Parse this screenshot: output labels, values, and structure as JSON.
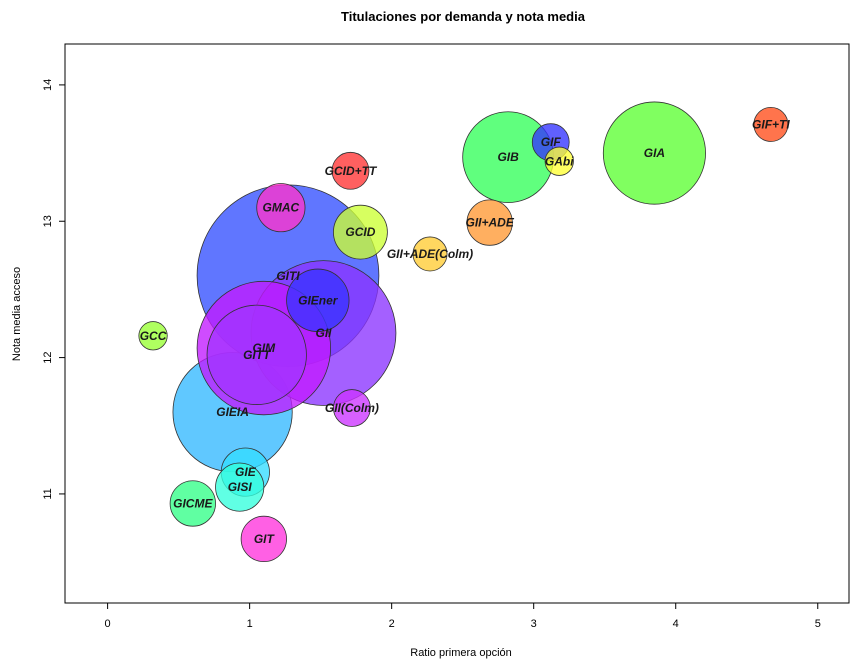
{
  "chart_data": {
    "type": "scatter",
    "title": "Titulaciones por demanda y nota media",
    "xlabel": "Ratio primera opción",
    "ylabel": "Nota media acceso",
    "xlim": [
      -0.3,
      5.22
    ],
    "ylim": [
      10.2,
      14.3
    ],
    "xticks": [
      0,
      1,
      2,
      3,
      4,
      5
    ],
    "yticks": [
      11,
      12,
      13,
      14
    ],
    "grid": false,
    "legend": "none",
    "points": [
      {
        "label": "GIEIA",
        "x": 0.88,
        "y": 11.6,
        "r": 0.42,
        "color": "#33b8ff"
      },
      {
        "label": "GITI",
        "x": 1.27,
        "y": 12.6,
        "r": 0.64,
        "color": "#3350ff"
      },
      {
        "label": "GII",
        "x": 1.52,
        "y": 12.18,
        "r": 0.51,
        "color": "#8a33ff"
      },
      {
        "label": "GIM",
        "x": 1.1,
        "y": 12.07,
        "r": 0.47,
        "color": "#c21aff"
      },
      {
        "label": "GITT",
        "x": 1.05,
        "y": 12.02,
        "r": 0.35,
        "color": "#a333ff"
      },
      {
        "label": "GIEner",
        "x": 1.48,
        "y": 12.42,
        "r": 0.22,
        "color": "#3a33ff"
      },
      {
        "label": "GIA",
        "x": 3.85,
        "y": 13.5,
        "r": 0.36,
        "color": "#5cff33"
      },
      {
        "label": "GIB",
        "x": 2.82,
        "y": 13.47,
        "r": 0.32,
        "color": "#33ff5a"
      },
      {
        "label": "GIF",
        "x": 3.12,
        "y": 13.58,
        "r": 0.13,
        "color": "#3333ff"
      },
      {
        "label": "GAbi",
        "x": 3.18,
        "y": 13.44,
        "r": 0.1,
        "color": "#ffff33"
      },
      {
        "label": "GIF+TI",
        "x": 4.67,
        "y": 13.71,
        "r": 0.12,
        "color": "#ff4d1a"
      },
      {
        "label": "GCID+TT",
        "x": 1.71,
        "y": 13.37,
        "r": 0.13,
        "color": "#ff3333"
      },
      {
        "label": "GII+ADE",
        "x": 2.69,
        "y": 12.99,
        "r": 0.16,
        "color": "#ff9933"
      },
      {
        "label": "GII+ADE(Colm)",
        "x": 2.27,
        "y": 12.76,
        "r": 0.12,
        "color": "#ffcc33"
      },
      {
        "label": "GCID",
        "x": 1.78,
        "y": 12.92,
        "r": 0.19,
        "color": "#ccff33"
      },
      {
        "label": "GMAC",
        "x": 1.22,
        "y": 13.1,
        "r": 0.17,
        "color": "#ff33cc"
      },
      {
        "label": "GCC",
        "x": 0.32,
        "y": 12.16,
        "r": 0.1,
        "color": "#99ff33"
      },
      {
        "label": "GII(Colm)",
        "x": 1.72,
        "y": 11.63,
        "r": 0.13,
        "color": "#cc33ff"
      },
      {
        "label": "GIE",
        "x": 0.97,
        "y": 11.16,
        "r": 0.17,
        "color": "#33ddff"
      },
      {
        "label": "GISI",
        "x": 0.93,
        "y": 11.05,
        "r": 0.17,
        "color": "#33ffdd"
      },
      {
        "label": "GICME",
        "x": 0.6,
        "y": 10.93,
        "r": 0.16,
        "color": "#33ff88"
      },
      {
        "label": "GIT",
        "x": 1.1,
        "y": 10.67,
        "r": 0.16,
        "color": "#ff33dd"
      }
    ]
  }
}
